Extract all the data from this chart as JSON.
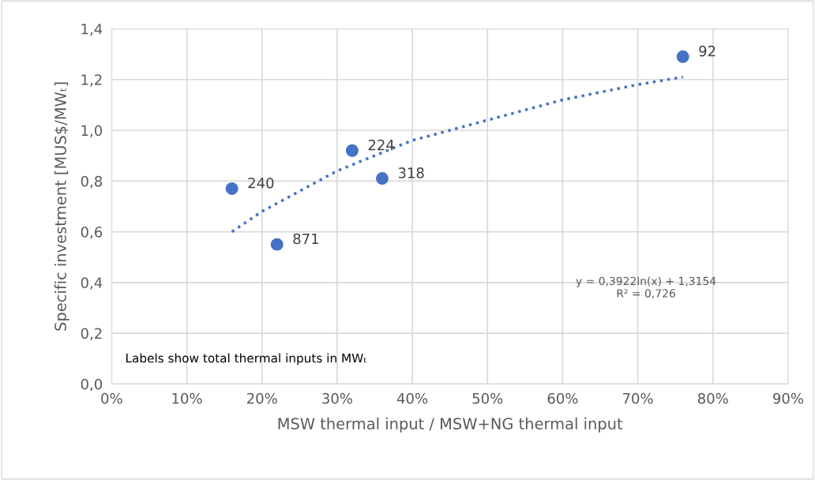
{
  "chart_data": {
    "type": "scatter",
    "xlabel": "MSW thermal input / MSW+NG thermal input",
    "ylabel": "Specific investment [MUS$/MWₜ]",
    "series": [
      {
        "color": "#4472c4",
        "x": [
          16,
          22,
          32,
          36,
          76
        ],
        "values": [
          0.77,
          0.55,
          0.92,
          0.81,
          1.29
        ],
        "marker": "circle"
      },
      {
        "type": "line",
        "color": "#4472c4",
        "x": [
          16,
          20,
          30,
          40,
          50,
          60,
          70,
          76
        ],
        "values": [
          0.6,
          0.68,
          0.84,
          0.96,
          1.04,
          1.12,
          1.18,
          1.21
        ],
        "line_style": "dotted",
        "marker": "none"
      }
    ],
    "annotations": [
      {
        "text": "240",
        "x": 16,
        "y": 0.77
      },
      {
        "text": "871",
        "x": 22,
        "y": 0.55
      },
      {
        "text": "224",
        "x": 32,
        "y": 0.92
      },
      {
        "text": "318",
        "x": 36,
        "y": 0.81
      },
      {
        "text": "92",
        "x": 76,
        "y": 1.29
      },
      "y = 0,3922ln(x) + 1,3154\nR² = 0,726",
      "Labels show total thermal inputs in MWₜ"
    ],
    "xlim": [
      0,
      90
    ],
    "xticks": [
      {
        "value": 0,
        "label": "0%"
      },
      {
        "value": 10,
        "label": "10%"
      },
      {
        "value": 20,
        "label": "20%"
      },
      {
        "value": 30,
        "label": "30%"
      },
      {
        "value": 40,
        "label": "40%"
      },
      {
        "value": 50,
        "label": "50%"
      },
      {
        "value": 60,
        "label": "60%"
      },
      {
        "value": 70,
        "label": "70%"
      },
      {
        "value": 80,
        "label": "80%"
      },
      {
        "value": 90,
        "label": "90%"
      }
    ],
    "ylim": [
      0,
      1.4
    ],
    "yticks": [
      {
        "value": 0,
        "label": "0,0"
      },
      {
        "value": 0.2,
        "label": "0,2"
      },
      {
        "value": 0.4,
        "label": "0,4"
      },
      {
        "value": 0.6,
        "label": "0,6"
      },
      {
        "value": 0.8,
        "label": "0,8"
      },
      {
        "value": 1.0,
        "label": "1,0"
      },
      {
        "value": 1.2,
        "label": "1,2"
      },
      {
        "value": 1.4,
        "label": "1,4"
      }
    ],
    "grid": true
  }
}
